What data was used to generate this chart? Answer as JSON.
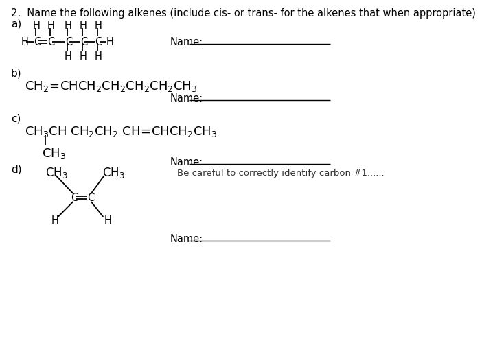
{
  "title": "2.  Name the following alkenes (include cis- or trans- for the alkenes that when appropriate)",
  "background_color": "#ffffff",
  "text_color": "#000000",
  "name_label": "Name:",
  "note_c": "Be careful to correctly identify carbon #1......",
  "a_label": "a)",
  "b_label": "b)",
  "c_label": "c)",
  "d_label": "d)",
  "title_fs": 10.5,
  "label_fs": 11,
  "struct_fs": 11,
  "name_fs": 10.5
}
